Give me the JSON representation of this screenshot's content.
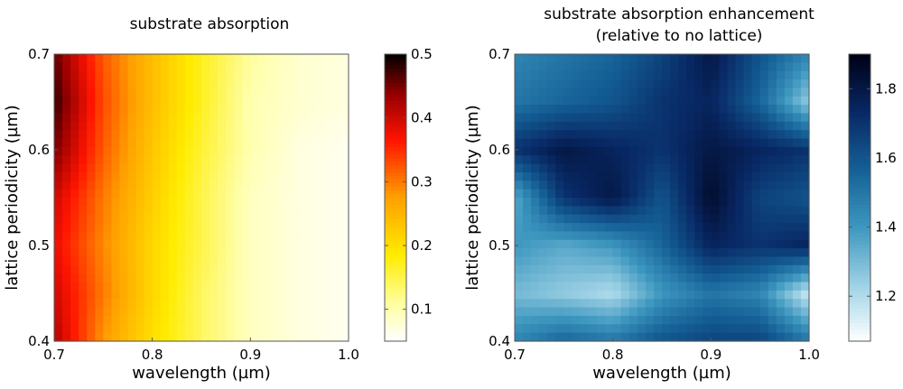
{
  "chart_data": [
    {
      "type": "heatmap",
      "title": "substrate absorption",
      "xlabel": "wavelength (µm)",
      "ylabel": "lattice periodicity (µm)",
      "xlim": [
        0.7,
        1.0
      ],
      "ylim": [
        0.4,
        0.7
      ],
      "xticks": [
        "0.7",
        "0.8",
        "0.9",
        "1.0"
      ],
      "xtick_values": [
        0.7,
        0.8,
        0.9,
        1.0
      ],
      "yticks": [
        "0.4",
        "0.5",
        "0.6",
        "0.7"
      ],
      "ytick_values": [
        0.4,
        0.5,
        0.6,
        0.7
      ],
      "colormap": "hot",
      "colorbar": {
        "range": [
          0.05,
          0.5
        ],
        "ticks": [
          "0.1",
          "0.2",
          "0.3",
          "0.4",
          "0.5"
        ],
        "tick_values": [
          0.1,
          0.2,
          0.3,
          0.4,
          0.5
        ]
      },
      "grid": {
        "x": [
          0.7,
          0.75,
          0.8,
          0.85,
          0.9,
          0.95,
          1.0
        ],
        "y": [
          0.7,
          0.65,
          0.6,
          0.55,
          0.5,
          0.45,
          0.4
        ],
        "values": [
          [
            0.46,
            0.32,
            0.24,
            0.17,
            0.11,
            0.08,
            0.07
          ],
          [
            0.48,
            0.33,
            0.24,
            0.17,
            0.1,
            0.08,
            0.07
          ],
          [
            0.45,
            0.32,
            0.23,
            0.16,
            0.1,
            0.07,
            0.06
          ],
          [
            0.4,
            0.3,
            0.22,
            0.15,
            0.09,
            0.07,
            0.06
          ],
          [
            0.38,
            0.29,
            0.21,
            0.15,
            0.09,
            0.07,
            0.06
          ],
          [
            0.4,
            0.3,
            0.21,
            0.14,
            0.09,
            0.07,
            0.06
          ],
          [
            0.42,
            0.28,
            0.2,
            0.14,
            0.09,
            0.07,
            0.06
          ]
        ]
      }
    },
    {
      "type": "heatmap",
      "title": "substrate absorption enhancement",
      "subtitle": "(relative to no lattice)",
      "xlabel": "wavelength (µm)",
      "ylabel": "lattice periodicity (µm)",
      "xlim": [
        0.7,
        1.0
      ],
      "ylim": [
        0.4,
        0.7
      ],
      "xticks": [
        "0.7",
        "0.8",
        "0.9",
        "1.0"
      ],
      "xtick_values": [
        0.7,
        0.8,
        0.9,
        1.0
      ],
      "yticks": [
        "0.4",
        "0.5",
        "0.6",
        "0.7"
      ],
      "ytick_values": [
        0.4,
        0.5,
        0.6,
        0.7
      ],
      "colormap": "blues-dark",
      "colorbar": {
        "range": [
          1.07,
          1.9
        ],
        "ticks": [
          "1.2",
          "1.4",
          "1.6",
          "1.8"
        ],
        "tick_values": [
          1.2,
          1.4,
          1.6,
          1.8
        ]
      },
      "grid": {
        "x": [
          0.7,
          0.75,
          0.8,
          0.85,
          0.9,
          0.95,
          1.0
        ],
        "y": [
          0.7,
          0.65,
          0.6,
          0.55,
          0.5,
          0.45,
          0.4
        ],
        "values": [
          [
            1.45,
            1.5,
            1.55,
            1.65,
            1.8,
            1.6,
            1.45
          ],
          [
            1.5,
            1.55,
            1.6,
            1.7,
            1.75,
            1.55,
            1.25
          ],
          [
            1.7,
            1.8,
            1.75,
            1.7,
            1.8,
            1.75,
            1.7
          ],
          [
            1.35,
            1.7,
            1.8,
            1.6,
            1.85,
            1.65,
            1.6
          ],
          [
            1.4,
            1.35,
            1.4,
            1.55,
            1.75,
            1.7,
            1.75
          ],
          [
            1.3,
            1.25,
            1.2,
            1.4,
            1.5,
            1.45,
            1.15
          ],
          [
            1.45,
            1.55,
            1.5,
            1.6,
            1.65,
            1.65,
            1.5
          ]
        ]
      }
    }
  ]
}
